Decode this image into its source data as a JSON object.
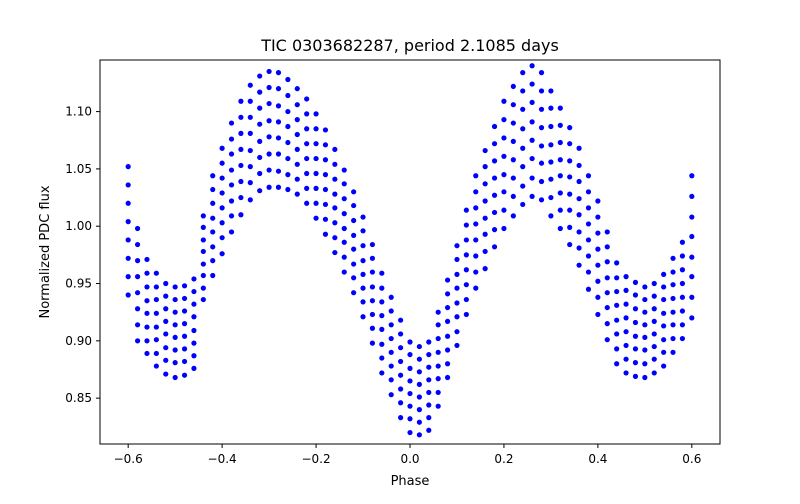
{
  "chart_data": {
    "type": "scatter",
    "title": "TIC 0303682287, period 2.1085 days",
    "xlabel": "Phase",
    "ylabel": "Normalized PDC flux",
    "xlim": [
      -0.66,
      0.66
    ],
    "ylim": [
      0.81,
      1.145
    ],
    "xticks": [
      -0.6,
      -0.4,
      -0.2,
      0.0,
      0.2,
      0.4,
      0.6
    ],
    "xtick_labels": [
      "−0.6",
      "−0.4",
      "−0.2",
      "0.0",
      "0.2",
      "0.4",
      "0.6"
    ],
    "yticks": [
      0.85,
      0.9,
      0.95,
      1.0,
      1.05,
      1.1
    ],
    "ytick_labels": [
      "0.85",
      "0.90",
      "0.95",
      "1.00",
      "1.05",
      "1.10"
    ],
    "grid": false,
    "legend": "none",
    "marker_color": "#0000ff",
    "x": [
      -0.6,
      -0.58,
      -0.56,
      -0.54,
      -0.52,
      -0.5,
      -0.48,
      -0.46,
      -0.44,
      -0.42,
      -0.4,
      -0.38,
      -0.36,
      -0.34,
      -0.32,
      -0.3,
      -0.28,
      -0.26,
      -0.24,
      -0.22,
      -0.2,
      -0.18,
      -0.16,
      -0.14,
      -0.12,
      -0.1,
      -0.08,
      -0.06,
      -0.04,
      -0.02,
      0.0,
      0.02,
      0.04,
      0.06,
      0.08,
      0.1,
      0.12,
      0.14,
      0.16,
      0.18,
      0.2,
      0.22,
      0.24,
      0.26,
      0.28,
      0.3,
      0.32,
      0.34,
      0.36,
      0.38,
      0.4,
      0.42,
      0.44,
      0.46,
      0.48,
      0.5,
      0.52,
      0.54,
      0.56,
      0.58,
      0.6
    ],
    "series": [
      {
        "values": [
          0.94,
          0.9,
          0.889,
          0.878,
          0.871,
          0.868,
          0.87,
          0.876,
          0.936,
          0.957,
          0.976,
          0.995,
          1.01,
          1.023,
          1.031,
          1.034,
          1.034,
          1.032,
          1.028,
          1.02,
          1.007,
          0.993,
          0.977,
          0.96,
          0.942,
          0.921,
          0.898,
          0.872,
          0.853,
          0.833,
          0.82,
          0.818,
          0.822,
          0.843,
          0.868,
          0.896,
          0.923,
          0.946,
          0.963,
          0.982,
          0.998,
          1.009,
          1.019,
          1.026,
          1.023,
          1.009,
          0.998,
          0.984,
          0.966,
          0.945,
          0.923,
          0.901,
          0.88,
          0.872,
          0.869,
          0.868,
          0.872,
          0.878,
          0.89,
          0.902,
          0.92
        ]
      },
      {
        "values": [
          0.956,
          0.914,
          0.9,
          0.889,
          0.883,
          0.881,
          0.882,
          0.887,
          0.946,
          0.97,
          0.99,
          1.009,
          1.025,
          1.038,
          1.046,
          1.049,
          1.048,
          1.045,
          1.041,
          1.033,
          1.02,
          1.006,
          0.99,
          0.973,
          0.955,
          0.934,
          0.911,
          0.885,
          0.866,
          0.846,
          0.832,
          0.829,
          0.833,
          0.855,
          0.88,
          0.908,
          0.936,
          0.96,
          0.978,
          0.997,
          1.014,
          1.026,
          1.035,
          1.042,
          1.039,
          1.025,
          1.014,
          0.999,
          0.981,
          0.96,
          0.938,
          0.915,
          0.893,
          0.884,
          0.881,
          0.88,
          0.884,
          0.89,
          0.902,
          0.914,
          0.938
        ]
      },
      {
        "values": [
          0.972,
          0.928,
          0.912,
          0.901,
          0.894,
          0.892,
          0.893,
          0.898,
          0.957,
          0.982,
          1.003,
          1.022,
          1.039,
          1.052,
          1.06,
          1.063,
          1.063,
          1.059,
          1.054,
          1.046,
          1.033,
          1.019,
          1.003,
          0.986,
          0.967,
          0.946,
          0.923,
          0.897,
          0.878,
          0.858,
          0.843,
          0.84,
          0.844,
          0.867,
          0.892,
          0.921,
          0.949,
          0.974,
          0.993,
          1.012,
          1.03,
          1.042,
          1.052,
          1.059,
          1.055,
          1.041,
          1.029,
          1.014,
          0.995,
          0.974,
          0.952,
          0.929,
          0.906,
          0.896,
          0.893,
          0.892,
          0.895,
          0.901,
          0.914,
          0.926,
          0.956
        ]
      },
      {
        "values": [
          0.988,
          0.942,
          0.924,
          0.912,
          0.906,
          0.903,
          0.904,
          0.909,
          0.967,
          0.995,
          1.016,
          1.036,
          1.053,
          1.066,
          1.074,
          1.078,
          1.077,
          1.073,
          1.067,
          1.059,
          1.046,
          1.032,
          1.016,
          0.998,
          0.98,
          0.958,
          0.935,
          0.91,
          0.89,
          0.87,
          0.854,
          0.851,
          0.855,
          0.878,
          0.904,
          0.933,
          0.962,
          0.988,
          1.007,
          1.027,
          1.045,
          1.058,
          1.068,
          1.075,
          1.07,
          1.056,
          1.044,
          1.028,
          1.01,
          0.988,
          0.966,
          0.942,
          0.918,
          0.908,
          0.904,
          0.903,
          0.906,
          0.913,
          0.925,
          0.938,
          0.973
        ]
      },
      {
        "values": [
          1.004,
          0.956,
          0.935,
          0.924,
          0.917,
          0.914,
          0.915,
          0.921,
          0.978,
          1.007,
          1.029,
          1.049,
          1.067,
          1.081,
          1.089,
          1.092,
          1.091,
          1.087,
          1.08,
          1.072,
          1.059,
          1.045,
          1.028,
          1.011,
          0.992,
          0.97,
          0.947,
          0.922,
          0.902,
          0.882,
          0.865,
          0.862,
          0.866,
          0.89,
          0.917,
          0.946,
          0.975,
          1.002,
          1.022,
          1.042,
          1.061,
          1.074,
          1.085,
          1.091,
          1.086,
          1.071,
          1.058,
          1.043,
          1.024,
          1.002,
          0.98,
          0.955,
          0.931,
          0.92,
          0.916,
          0.914,
          0.917,
          0.924,
          0.937,
          0.95,
          0.991
        ]
      },
      {
        "values": [
          1.02,
          0.97,
          0.947,
          0.936,
          0.928,
          0.925,
          0.926,
          0.932,
          0.988,
          1.02,
          1.042,
          1.063,
          1.081,
          1.095,
          1.103,
          1.107,
          1.105,
          1.1,
          1.093,
          1.085,
          1.072,
          1.058,
          1.041,
          1.024,
          1.005,
          0.983,
          0.96,
          0.934,
          0.914,
          0.894,
          0.876,
          0.873,
          0.877,
          0.902,
          0.929,
          0.958,
          0.988,
          1.016,
          1.037,
          1.057,
          1.077,
          1.09,
          1.102,
          1.108,
          1.102,
          1.087,
          1.073,
          1.057,
          1.039,
          1.016,
          0.994,
          0.969,
          0.943,
          0.932,
          0.928,
          0.925,
          0.928,
          0.936,
          0.949,
          0.962,
          1.008
        ]
      },
      {
        "values": [
          1.036,
          0.984,
          0.959,
          0.947,
          0.939,
          0.936,
          0.937,
          0.943,
          0.999,
          1.032,
          1.055,
          1.076,
          1.095,
          1.109,
          1.117,
          1.121,
          1.12,
          1.114,
          1.106,
          1.098,
          1.085,
          1.071,
          1.054,
          1.037,
          1.018,
          0.996,
          0.972,
          0.946,
          0.926,
          0.906,
          0.888,
          0.884,
          0.888,
          0.914,
          0.941,
          0.971,
          1.001,
          1.03,
          1.052,
          1.072,
          1.093,
          1.106,
          1.118,
          1.124,
          1.118,
          1.103,
          1.088,
          1.072,
          1.053,
          1.03,
          1.008,
          0.982,
          0.955,
          0.944,
          0.94,
          0.936,
          0.939,
          0.947,
          0.96,
          0.974,
          1.026
        ]
      },
      {
        "values": [
          1.052,
          0.998,
          0.971,
          0.959,
          0.95,
          0.947,
          0.948,
          0.954,
          1.009,
          1.044,
          1.068,
          1.09,
          1.109,
          1.123,
          1.131,
          1.135,
          1.134,
          1.128,
          1.12,
          1.111,
          1.098,
          1.084,
          1.067,
          1.049,
          1.03,
          1.008,
          0.984,
          0.959,
          0.938,
          0.918,
          0.899,
          0.895,
          0.899,
          0.925,
          0.953,
          0.983,
          1.014,
          1.044,
          1.066,
          1.087,
          1.109,
          1.122,
          1.134,
          1.14,
          1.134,
          1.118,
          1.103,
          1.086,
          1.068,
          1.044,
          1.022,
          0.995,
          0.968,
          0.956,
          0.951,
          0.947,
          0.95,
          0.958,
          0.972,
          0.986,
          1.044
        ]
      }
    ]
  }
}
